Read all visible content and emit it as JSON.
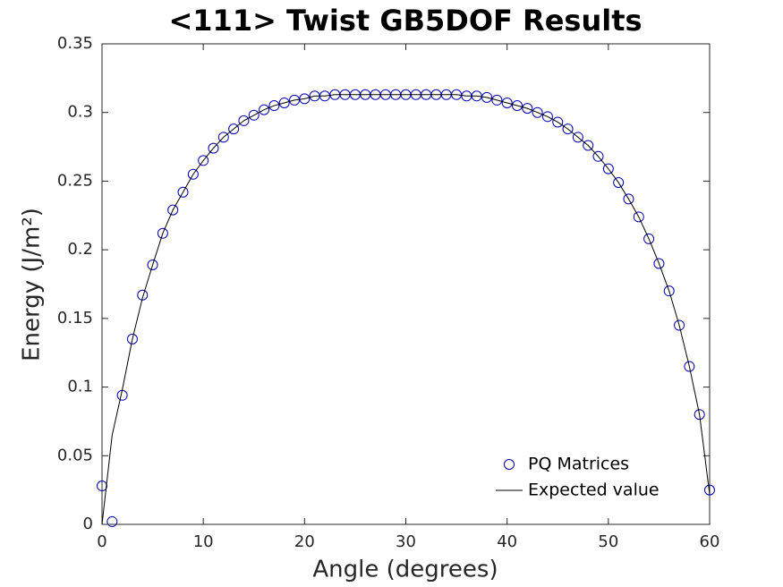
{
  "chart_data": {
    "type": "scatter",
    "title": "<111> Twist GB5DOF Results",
    "xlabel": "Angle (degrees)",
    "ylabel": "Energy (J/m²)",
    "xlim": [
      0,
      60
    ],
    "ylim": [
      0,
      0.35
    ],
    "xticks": [
      0,
      10,
      20,
      30,
      40,
      50,
      60
    ],
    "yticks": [
      0,
      0.05,
      0.1,
      0.15,
      0.2,
      0.25,
      0.3,
      0.35
    ],
    "grid": false,
    "legend_location": "lower right",
    "series": [
      {
        "name": "PQ Matrices",
        "type": "scatter",
        "color": "#0000b0",
        "x": [
          0,
          1,
          2,
          3,
          4,
          5,
          6,
          7,
          8,
          9,
          10,
          11,
          12,
          13,
          14,
          15,
          16,
          17,
          18,
          19,
          20,
          21,
          22,
          23,
          24,
          25,
          26,
          27,
          28,
          29,
          30,
          31,
          32,
          33,
          34,
          35,
          36,
          37,
          38,
          39,
          40,
          41,
          42,
          43,
          44,
          45,
          46,
          47,
          48,
          49,
          50,
          51,
          52,
          53,
          54,
          55,
          56,
          57,
          58,
          59,
          60
        ],
        "values": [
          0.028,
          0.002,
          0.094,
          0.135,
          0.167,
          0.189,
          0.212,
          0.229,
          0.242,
          0.255,
          0.265,
          0.274,
          0.282,
          0.288,
          0.294,
          0.298,
          0.302,
          0.305,
          0.307,
          0.309,
          0.31,
          0.312,
          0.312,
          0.313,
          0.313,
          0.313,
          0.313,
          0.313,
          0.313,
          0.313,
          0.313,
          0.313,
          0.313,
          0.313,
          0.313,
          0.313,
          0.312,
          0.312,
          0.311,
          0.309,
          0.307,
          0.305,
          0.303,
          0.3,
          0.297,
          0.293,
          0.288,
          0.282,
          0.276,
          0.268,
          0.259,
          0.249,
          0.237,
          0.224,
          0.208,
          0.19,
          0.17,
          0.145,
          0.115,
          0.08,
          0.025
        ]
      },
      {
        "name": "Expected value",
        "type": "line",
        "color": "#000000",
        "x": [
          0,
          1,
          2,
          3,
          4,
          5,
          6,
          7,
          8,
          9,
          10,
          11,
          12,
          13,
          14,
          15,
          16,
          17,
          18,
          19,
          20,
          21,
          22,
          23,
          24,
          25,
          26,
          27,
          28,
          29,
          30,
          31,
          32,
          33,
          34,
          35,
          36,
          37,
          38,
          39,
          40,
          41,
          42,
          43,
          44,
          45,
          46,
          47,
          48,
          49,
          50,
          51,
          52,
          53,
          54,
          55,
          56,
          57,
          58,
          59,
          60
        ],
        "values": [
          0,
          0.065,
          0.098,
          0.135,
          0.165,
          0.189,
          0.212,
          0.229,
          0.242,
          0.255,
          0.265,
          0.274,
          0.282,
          0.288,
          0.294,
          0.298,
          0.302,
          0.305,
          0.307,
          0.309,
          0.31,
          0.312,
          0.312,
          0.313,
          0.313,
          0.313,
          0.313,
          0.313,
          0.313,
          0.313,
          0.313,
          0.313,
          0.313,
          0.313,
          0.313,
          0.313,
          0.312,
          0.312,
          0.311,
          0.309,
          0.307,
          0.305,
          0.303,
          0.3,
          0.297,
          0.293,
          0.288,
          0.282,
          0.276,
          0.268,
          0.259,
          0.249,
          0.237,
          0.224,
          0.208,
          0.19,
          0.17,
          0.145,
          0.115,
          0.08,
          0.022
        ]
      }
    ]
  }
}
